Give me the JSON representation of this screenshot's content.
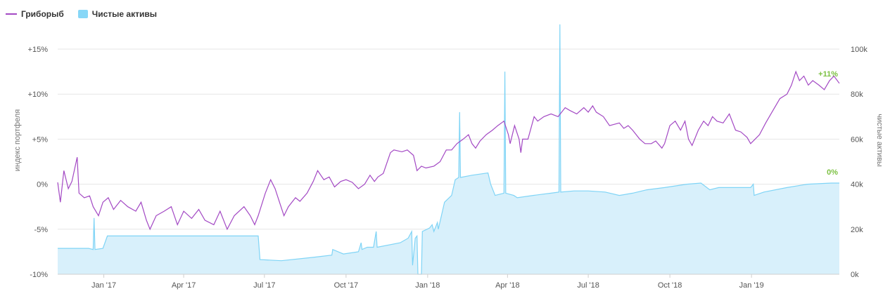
{
  "legend": [
    {
      "label": "Гриборыб",
      "color": "#a349c4",
      "kind": "line"
    },
    {
      "label": "Чистые активы",
      "color": "#7fd4f6",
      "kind": "area"
    }
  ],
  "chart_data": {
    "type": "line",
    "x_ticks": [
      "Jan '17",
      "Apr '17",
      "Jul '17",
      "Oct '17",
      "Jan '18",
      "Apr '18",
      "Jul '18",
      "Oct '18",
      "Jan '19"
    ],
    "y_left": {
      "label": "индекс портфеля",
      "ticks": [
        "-10%",
        "-5%",
        "0%",
        "+5%",
        "+10%",
        "+15%"
      ],
      "range": [
        -10,
        15
      ],
      "unit": "%"
    },
    "y_right": {
      "label": "чистые активы",
      "ticks": [
        "0k",
        "20k",
        "40k",
        "60k",
        "80k",
        "100k"
      ],
      "range": [
        0,
        100
      ]
    },
    "grid": true,
    "series": [
      {
        "name": "Гриборыб",
        "type": "line",
        "axis": "left",
        "color": "#a349c4",
        "end_label": "+11%",
        "end_label_color": "#7cc142",
        "points": [
          [
            "2016-11-10",
            0.2
          ],
          [
            "2016-11-13",
            -2
          ],
          [
            "2016-11-17",
            1.5
          ],
          [
            "2016-11-22",
            -0.5
          ],
          [
            "2016-11-26",
            0.3
          ],
          [
            "2016-12-02",
            3
          ],
          [
            "2016-12-04",
            -1
          ],
          [
            "2016-12-10",
            -1.5
          ],
          [
            "2016-12-16",
            -1.3
          ],
          [
            "2016-12-20",
            -2.5
          ],
          [
            "2016-12-26",
            -3.5
          ],
          [
            "2016-12-31",
            -2
          ],
          [
            "2017-01-06",
            -1.5
          ],
          [
            "2017-01-12",
            -2.8
          ],
          [
            "2017-01-20",
            -1.8
          ],
          [
            "2017-01-28",
            -2.5
          ],
          [
            "2017-02-06",
            -3
          ],
          [
            "2017-02-12",
            -2
          ],
          [
            "2017-02-18",
            -4
          ],
          [
            "2017-02-22",
            -5
          ],
          [
            "2017-03-01",
            -3.5
          ],
          [
            "2017-03-10",
            -3
          ],
          [
            "2017-03-18",
            -2.5
          ],
          [
            "2017-03-25",
            -4.5
          ],
          [
            "2017-04-01",
            -3
          ],
          [
            "2017-04-10",
            -3.8
          ],
          [
            "2017-04-18",
            -2.8
          ],
          [
            "2017-04-25",
            -4
          ],
          [
            "2017-05-05",
            -4.5
          ],
          [
            "2017-05-12",
            -3
          ],
          [
            "2017-05-20",
            -5
          ],
          [
            "2017-05-28",
            -3.5
          ],
          [
            "2017-06-08",
            -2.5
          ],
          [
            "2017-06-15",
            -3.5
          ],
          [
            "2017-06-20",
            -4.5
          ],
          [
            "2017-06-24",
            -3.5
          ],
          [
            "2017-07-02",
            -1
          ],
          [
            "2017-07-08",
            0.5
          ],
          [
            "2017-07-13",
            -0.5
          ],
          [
            "2017-07-18",
            -2
          ],
          [
            "2017-07-23",
            -3.5
          ],
          [
            "2017-07-28",
            -2.5
          ],
          [
            "2017-08-05",
            -1.5
          ],
          [
            "2017-08-10",
            -1.9
          ],
          [
            "2017-08-18",
            -1
          ],
          [
            "2017-08-25",
            0.3
          ],
          [
            "2017-08-30",
            1.5
          ],
          [
            "2017-09-06",
            0.5
          ],
          [
            "2017-09-12",
            0.8
          ],
          [
            "2017-09-18",
            -0.3
          ],
          [
            "2017-09-25",
            0.3
          ],
          [
            "2017-10-01",
            0.5
          ],
          [
            "2017-10-08",
            0.2
          ],
          [
            "2017-10-15",
            -0.5
          ],
          [
            "2017-10-22",
            0
          ],
          [
            "2017-10-28",
            1
          ],
          [
            "2017-11-02",
            0.3
          ],
          [
            "2017-11-06",
            0.8
          ],
          [
            "2017-11-12",
            1.2
          ],
          [
            "2017-11-20",
            3.5
          ],
          [
            "2017-11-24",
            3.8
          ],
          [
            "2017-12-03",
            3.6
          ],
          [
            "2017-12-09",
            3.8
          ],
          [
            "2017-12-16",
            3.2
          ],
          [
            "2017-12-20",
            1.5
          ],
          [
            "2017-12-25",
            2
          ],
          [
            "2017-12-30",
            1.8
          ],
          [
            "2018-01-08",
            2
          ],
          [
            "2018-01-15",
            2.5
          ],
          [
            "2018-01-22",
            3.8
          ],
          [
            "2018-01-28",
            3.8
          ],
          [
            "2018-02-03",
            4.5
          ],
          [
            "2018-02-10",
            5
          ],
          [
            "2018-02-16",
            5.5
          ],
          [
            "2018-02-20",
            4.5
          ],
          [
            "2018-02-24",
            4
          ],
          [
            "2018-03-01",
            4.8
          ],
          [
            "2018-03-08",
            5.5
          ],
          [
            "2018-03-15",
            6
          ],
          [
            "2018-03-21",
            6.5
          ],
          [
            "2018-03-28",
            7
          ],
          [
            "2018-04-02",
            5.5
          ],
          [
            "2018-04-04",
            4.5
          ],
          [
            "2018-04-09",
            6.5
          ],
          [
            "2018-04-14",
            5
          ],
          [
            "2018-04-16",
            3.5
          ],
          [
            "2018-04-18",
            5
          ],
          [
            "2018-04-24",
            5
          ],
          [
            "2018-05-01",
            7.5
          ],
          [
            "2018-05-05",
            7
          ],
          [
            "2018-05-12",
            7.5
          ],
          [
            "2018-05-20",
            7.8
          ],
          [
            "2018-05-28",
            7.5
          ],
          [
            "2018-06-01",
            8
          ],
          [
            "2018-06-05",
            8.5
          ],
          [
            "2018-06-10",
            8.2
          ],
          [
            "2018-06-18",
            7.8
          ],
          [
            "2018-06-26",
            8.5
          ],
          [
            "2018-07-01",
            8
          ],
          [
            "2018-07-06",
            8.7
          ],
          [
            "2018-07-10",
            8
          ],
          [
            "2018-07-18",
            7.5
          ],
          [
            "2018-07-25",
            6.5
          ],
          [
            "2018-08-05",
            6.8
          ],
          [
            "2018-08-10",
            6.2
          ],
          [
            "2018-08-15",
            6.5
          ],
          [
            "2018-08-20",
            6
          ],
          [
            "2018-08-28",
            5
          ],
          [
            "2018-09-03",
            4.5
          ],
          [
            "2018-09-10",
            4.5
          ],
          [
            "2018-09-15",
            4.8
          ],
          [
            "2018-09-22",
            4
          ],
          [
            "2018-09-25",
            4.5
          ],
          [
            "2018-10-01",
            6.5
          ],
          [
            "2018-10-07",
            7
          ],
          [
            "2018-10-13",
            6
          ],
          [
            "2018-10-18",
            7
          ],
          [
            "2018-10-22",
            5
          ],
          [
            "2018-10-26",
            4.3
          ],
          [
            "2018-11-02",
            6
          ],
          [
            "2018-11-08",
            7
          ],
          [
            "2018-11-13",
            6.5
          ],
          [
            "2018-11-18",
            7.5
          ],
          [
            "2018-11-23",
            7
          ],
          [
            "2018-11-30",
            6.8
          ],
          [
            "2018-12-07",
            7.8
          ],
          [
            "2018-12-14",
            6
          ],
          [
            "2018-12-20",
            5.8
          ],
          [
            "2018-12-27",
            5.2
          ],
          [
            "2018-12-31",
            4.5
          ],
          [
            "2019-01-05",
            5
          ],
          [
            "2019-01-10",
            5.5
          ],
          [
            "2019-01-17",
            6.8
          ],
          [
            "2019-01-24",
            8
          ],
          [
            "2019-02-02",
            9.5
          ],
          [
            "2019-02-10",
            10
          ],
          [
            "2019-02-15",
            11
          ],
          [
            "2019-02-20",
            12.5
          ],
          [
            "2019-02-24",
            11.5
          ],
          [
            "2019-03-01",
            12
          ],
          [
            "2019-03-06",
            11
          ],
          [
            "2019-03-11",
            11.5
          ],
          [
            "2019-03-18",
            11
          ],
          [
            "2019-03-24",
            10.5
          ],
          [
            "2019-03-30",
            11.5
          ],
          [
            "2019-04-04",
            12
          ],
          [
            "2019-04-10",
            11.2
          ]
        ]
      },
      {
        "name": "Чистые активы",
        "type": "area",
        "axis": "right",
        "color": "#7fd4f6",
        "end_label": "0%",
        "end_label_color": "#7cc142",
        "points": [
          [
            "2016-11-10",
            11.5
          ],
          [
            "2016-12-15",
            11.5
          ],
          [
            "2016-12-20",
            11
          ],
          [
            "2016-12-21",
            25
          ],
          [
            "2016-12-22",
            11
          ],
          [
            "2016-12-31",
            11.5
          ],
          [
            "2017-01-05",
            17
          ],
          [
            "2017-03-15",
            17
          ],
          [
            "2017-06-24",
            17
          ],
          [
            "2017-06-26",
            6.5
          ],
          [
            "2017-07-20",
            6
          ],
          [
            "2017-08-25",
            7.5
          ],
          [
            "2017-09-15",
            8.5
          ],
          [
            "2017-09-16",
            11
          ],
          [
            "2017-09-28",
            9
          ],
          [
            "2017-10-15",
            10
          ],
          [
            "2017-10-18",
            14
          ],
          [
            "2017-10-19",
            11
          ],
          [
            "2017-10-25",
            12
          ],
          [
            "2017-11-01",
            12
          ],
          [
            "2017-11-04",
            19
          ],
          [
            "2017-11-05",
            12
          ],
          [
            "2017-12-01",
            14
          ],
          [
            "2017-12-10",
            16
          ],
          [
            "2017-12-14",
            19
          ],
          [
            "2017-12-15",
            4
          ],
          [
            "2017-12-18",
            16
          ],
          [
            "2017-12-20",
            17
          ],
          [
            "2017-12-21",
            0
          ],
          [
            "2017-12-25",
            0
          ],
          [
            "2017-12-26",
            19
          ],
          [
            "2018-01-03",
            20.5
          ],
          [
            "2018-01-06",
            22
          ],
          [
            "2018-01-08",
            19
          ],
          [
            "2018-01-12",
            23
          ],
          [
            "2018-01-13",
            20
          ],
          [
            "2018-01-20",
            32
          ],
          [
            "2018-01-28",
            35
          ],
          [
            "2018-02-01",
            42
          ],
          [
            "2018-02-05",
            43
          ],
          [
            "2018-02-06",
            72
          ],
          [
            "2018-02-07",
            43
          ],
          [
            "2018-02-20",
            44
          ],
          [
            "2018-03-10",
            45
          ],
          [
            "2018-03-13",
            40
          ],
          [
            "2018-03-18",
            35
          ],
          [
            "2018-03-28",
            36
          ],
          [
            "2018-03-29",
            90
          ],
          [
            "2018-03-30",
            36
          ],
          [
            "2018-04-08",
            35
          ],
          [
            "2018-04-12",
            34
          ],
          [
            "2018-04-30",
            35
          ],
          [
            "2018-05-20",
            36
          ],
          [
            "2018-05-29",
            36.5
          ],
          [
            "2018-05-30",
            111
          ],
          [
            "2018-05-31",
            36.5
          ],
          [
            "2018-06-15",
            37
          ],
          [
            "2018-07-01",
            37
          ],
          [
            "2018-07-20",
            36.5
          ],
          [
            "2018-08-05",
            35
          ],
          [
            "2018-08-20",
            36
          ],
          [
            "2018-09-05",
            37.5
          ],
          [
            "2018-09-25",
            38.5
          ],
          [
            "2018-10-20",
            40
          ],
          [
            "2018-11-05",
            40.5
          ],
          [
            "2018-11-15",
            37.5
          ],
          [
            "2018-11-25",
            38.5
          ],
          [
            "2018-12-10",
            38.5
          ],
          [
            "2018-12-31",
            38.5
          ],
          [
            "2019-01-03",
            40
          ],
          [
            "2019-01-04",
            35
          ],
          [
            "2019-01-15",
            36.5
          ],
          [
            "2019-02-10",
            38.5
          ],
          [
            "2019-03-05",
            40
          ],
          [
            "2019-04-01",
            40.5
          ],
          [
            "2019-04-10",
            40.5
          ]
        ]
      }
    ]
  }
}
